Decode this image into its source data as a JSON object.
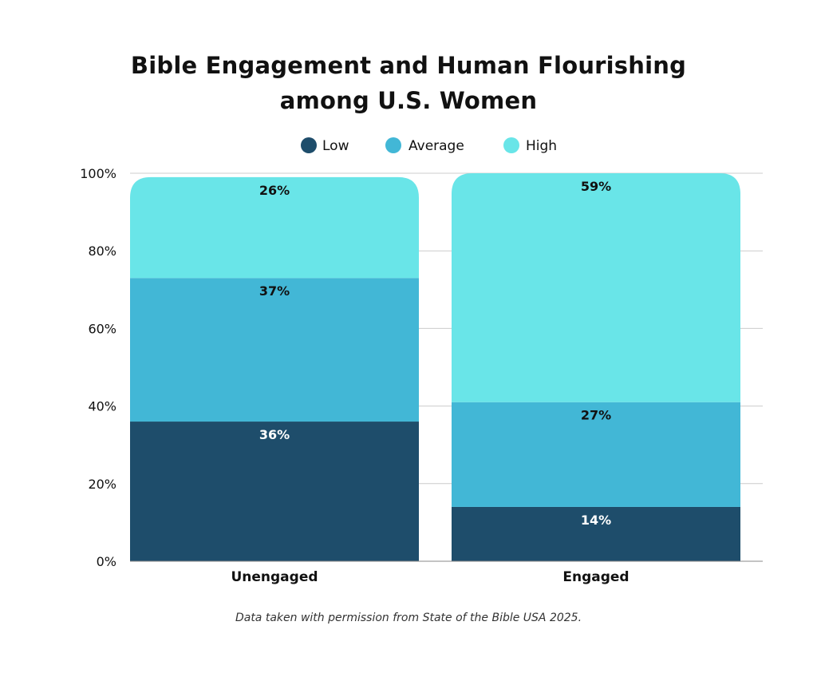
{
  "chart_data": {
    "type": "bar",
    "stacked": true,
    "title_lines": [
      "Bible Engagement and Human Flourishing",
      "among U.S. Women"
    ],
    "categories": [
      "Unengaged",
      "Engaged"
    ],
    "series": [
      {
        "name": "Low",
        "color": "#1e4d6b",
        "values": [
          36,
          14
        ],
        "labels": [
          "36%",
          "14%"
        ]
      },
      {
        "name": "Average",
        "color": "#42b7d6",
        "values": [
          37,
          27
        ],
        "labels": [
          "37%",
          "27%"
        ]
      },
      {
        "name": "High",
        "color": "#69e5e8",
        "values": [
          26,
          59
        ],
        "labels": [
          "26%",
          "59%"
        ]
      }
    ],
    "y_ticks": [
      {
        "value": 0,
        "label": "0%"
      },
      {
        "value": 20,
        "label": "20%"
      },
      {
        "value": 40,
        "label": "40%"
      },
      {
        "value": 60,
        "label": "60%"
      },
      {
        "value": 80,
        "label": "80%"
      },
      {
        "value": 100,
        "label": "100%"
      }
    ],
    "ylim": [
      0,
      100
    ],
    "grid": true,
    "legend_position": "top-center"
  },
  "caption": "Data taken with permission from State of the Bible USA 2025."
}
